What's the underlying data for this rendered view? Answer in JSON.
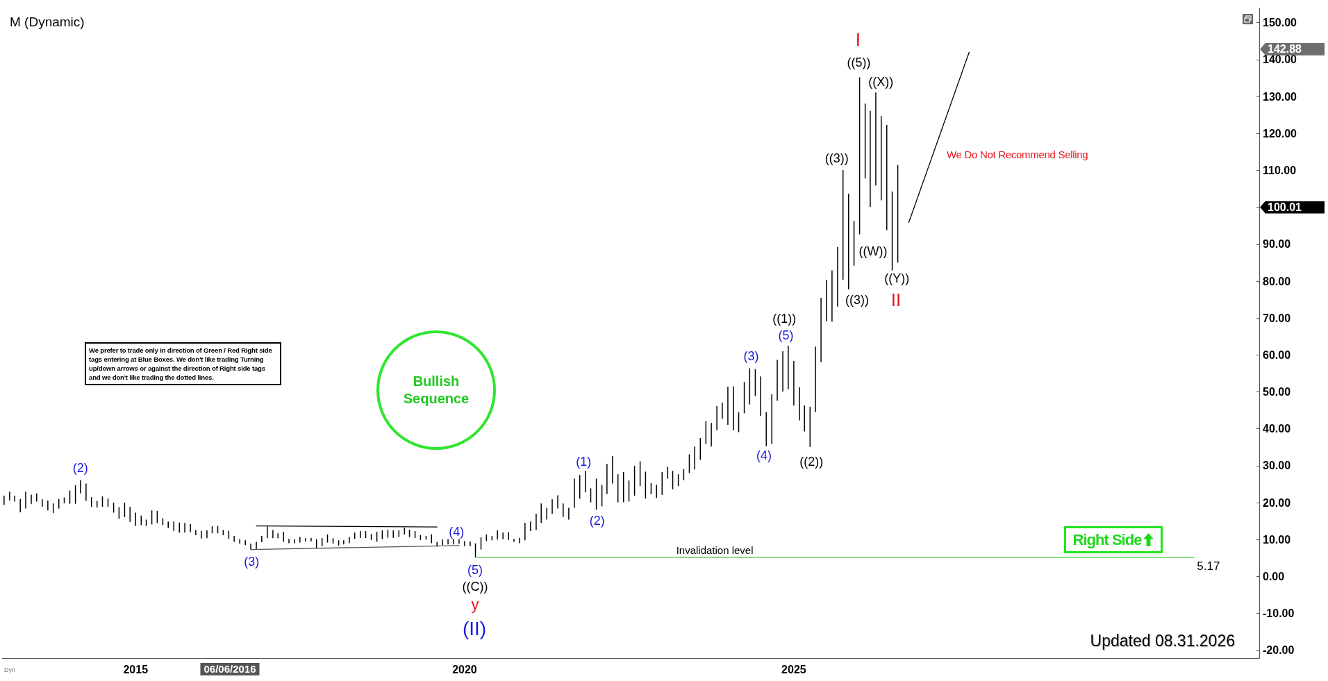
{
  "chart_data": {
    "type": "bar",
    "title": "M (Dynamic)",
    "xlim": [
      "2012-12-21",
      "2032-01-28"
    ],
    "xticks": [
      "2015",
      "2020",
      "2025"
    ],
    "ylim": [
      -22.1,
      153.9
    ],
    "yticks": [
      {
        "value": -20,
        "label": "-20.00"
      },
      {
        "value": -10,
        "label": "-10.00"
      },
      {
        "value": 0,
        "label": "0.00"
      },
      {
        "value": 10,
        "label": "10.00"
      },
      {
        "value": 20,
        "label": "20.00"
      },
      {
        "value": 30,
        "label": "30.00"
      },
      {
        "value": 40,
        "label": "40.00"
      },
      {
        "value": 50,
        "label": "50.00"
      },
      {
        "value": 60,
        "label": "60.00"
      },
      {
        "value": 70,
        "label": "70.00"
      },
      {
        "value": 80,
        "label": "80.00"
      },
      {
        "value": 90,
        "label": "90.00"
      },
      {
        "value": 100,
        "label": null
      },
      {
        "value": 110,
        "label": "110.00"
      },
      {
        "value": 120,
        "label": "120.00"
      },
      {
        "value": 130,
        "label": "130.00"
      },
      {
        "value": 140,
        "label": "140.00"
      },
      {
        "value": 150,
        "label": "150.00"
      }
    ],
    "marker": "none",
    "series": [
      {
        "color": "#000000",
        "x": [
          "2013-01",
          "2013-02",
          "2013-03",
          "2013-04",
          "2013-05",
          "2013-06",
          "2013-07",
          "2013-08",
          "2013-09",
          "2013-10",
          "2013-11",
          "2013-12",
          "2014-01",
          "2014-02",
          "2014-03",
          "2014-04",
          "2014-05",
          "2014-06",
          "2014-07",
          "2014-08",
          "2014-09",
          "2014-10",
          "2014-11",
          "2014-12",
          "2015-01",
          "2015-02",
          "2015-03",
          "2015-04",
          "2015-05",
          "2015-06",
          "2015-07",
          "2015-08",
          "2015-09",
          "2015-10",
          "2015-11",
          "2015-12",
          "2016-01",
          "2016-02",
          "2016-03",
          "2016-04",
          "2016-05",
          "2016-06",
          "2016-07",
          "2016-08",
          "2016-09",
          "2016-10",
          "2016-11",
          "2016-12",
          "2017-01",
          "2017-02",
          "2017-03",
          "2017-04",
          "2017-05",
          "2017-06",
          "2017-07",
          "2017-08",
          "2017-09",
          "2017-10",
          "2017-11",
          "2017-12",
          "2018-01",
          "2018-02",
          "2018-03",
          "2018-04",
          "2018-05",
          "2018-06",
          "2018-07",
          "2018-08",
          "2018-09",
          "2018-10",
          "2018-11",
          "2018-12",
          "2019-01",
          "2019-02",
          "2019-03",
          "2019-04",
          "2019-05",
          "2019-06",
          "2019-07",
          "2019-08",
          "2019-09",
          "2019-10",
          "2019-11",
          "2019-12",
          "2020-01",
          "2020-02",
          "2020-03",
          "2020-04",
          "2020-05",
          "2020-06",
          "2020-07",
          "2020-08",
          "2020-09",
          "2020-10",
          "2020-11",
          "2020-12",
          "2021-01",
          "2021-02",
          "2021-03",
          "2021-04",
          "2021-05",
          "2021-06",
          "2021-07",
          "2021-08",
          "2021-09",
          "2021-10",
          "2021-11",
          "2021-12",
          "2022-01",
          "2022-02",
          "2022-03",
          "2022-04",
          "2022-05",
          "2022-06",
          "2022-07",
          "2022-08",
          "2022-09",
          "2022-10",
          "2022-11",
          "2022-12",
          "2023-01",
          "2023-02",
          "2023-03",
          "2023-04",
          "2023-05",
          "2023-06",
          "2023-07",
          "2023-08",
          "2023-09",
          "2023-10",
          "2023-11",
          "2023-12",
          "2024-01",
          "2024-02",
          "2024-03",
          "2024-04",
          "2024-05",
          "2024-06",
          "2024-07",
          "2024-08",
          "2024-09",
          "2024-10",
          "2024-11",
          "2024-12",
          "2025-01",
          "2025-02",
          "2025-03",
          "2025-04",
          "2025-05",
          "2025-06",
          "2025-07",
          "2025-08",
          "2025-09",
          "2025-10",
          "2025-11",
          "2025-12",
          "2026-01",
          "2026-02",
          "2026-03",
          "2026-04",
          "2026-05",
          "2026-06",
          "2026-07",
          "2026-08"
        ],
        "base": [
          19.4,
          20.6,
          20.3,
          17.4,
          18.4,
          19.7,
          20.3,
          18.9,
          17.9,
          17.2,
          18.4,
          19.8,
          19.7,
          19.7,
          22.5,
          20.5,
          18.9,
          18.7,
          18.9,
          18.9,
          17.3,
          15.6,
          16.1,
          14.8,
          13.7,
          13.9,
          13.7,
          14.1,
          14.5,
          13.9,
          13.1,
          12.3,
          11.9,
          11.9,
          12.0,
          11.2,
          10.3,
          10.4,
          11.7,
          11.7,
          11.2,
          10.2,
          9.4,
          8.9,
          8.5,
          7.4,
          7.4,
          9.3,
          10.4,
          10.4,
          10.4,
          9.4,
          9.0,
          9.0,
          9.2,
          9.5,
          9.5,
          7.6,
          8.2,
          9.2,
          8.9,
          8.4,
          8.7,
          9.0,
          10.2,
          10.4,
          10.4,
          9.9,
          9.4,
          10.1,
          10.5,
          10.5,
          10.7,
          11.4,
          10.7,
          10.4,
          9.9,
          10.0,
          9.0,
          8.1,
          8.5,
          8.7,
          8.7,
          8.9,
          8.2,
          8.2,
          5.17,
          7.3,
          9.6,
          9.8,
          10.0,
          10.1,
          9.9,
          9.4,
          9.0,
          9.8,
          12.3,
          12.6,
          14.5,
          15.4,
          17.0,
          18.4,
          16.1,
          15.4,
          18.6,
          21.1,
          22.8,
          20.1,
          18.1,
          19.0,
          22.3,
          25.2,
          20.1,
          20.1,
          20.3,
          21.9,
          24.5,
          21.1,
          22.3,
          21.3,
          22.1,
          26.5,
          23.6,
          24.5,
          26.1,
          28.0,
          29.0,
          31.6,
          35.9,
          35.2,
          39.6,
          42.7,
          41.1,
          39.6,
          39.1,
          44.2,
          46.6,
          48.9,
          43.5,
          35.3,
          35.9,
          47.6,
          50.1,
          50.7,
          46.3,
          42.3,
          39.3,
          35.1,
          44.5,
          58.1,
          69.1,
          69.0,
          73.1,
          80.4,
          77.8,
          84.2,
          92.7,
          107.8,
          100.1,
          105.9,
          101.9,
          93.8,
          82.9,
          85.0
        ],
        "values": [
          2.5,
          2.4,
          1.6,
          3.6,
          4.6,
          2.5,
          2.2,
          2.0,
          2.7,
          2.6,
          2.6,
          1.6,
          3.6,
          5.0,
          3.6,
          4.7,
          2.6,
          1.8,
          2.8,
          2.2,
          2.7,
          3.2,
          3.9,
          4.1,
          3.6,
          2.6,
          1.7,
          3.8,
          3.3,
          1.9,
          1.8,
          2.6,
          2.7,
          2.6,
          2.2,
          1.4,
          2.0,
          2.1,
          1.9,
          2.0,
          1.4,
          2.2,
          1.6,
          1.2,
          1.3,
          1.5,
          2.0,
          1.7,
          3.2,
          2.2,
          1.3,
          2.7,
          1.2,
          1.1,
          1.5,
          0.9,
          1.0,
          2.5,
          2.2,
          2.2,
          1.5,
          1.4,
          1.1,
          1.7,
          1.7,
          1.9,
          1.9,
          1.6,
          2.7,
          2.4,
          2.2,
          2.0,
          1.8,
          1.8,
          2.0,
          1.9,
          1.3,
          1.0,
          2.4,
          1.3,
          1.5,
          1.4,
          1.5,
          1.2,
          1.4,
          1.3,
          3.8,
          3.3,
          1.8,
          1.2,
          2.5,
          1.8,
          2.1,
          0.8,
          1.5,
          4.7,
          2.6,
          4.4,
          5.3,
          3.2,
          3.9,
          3.6,
          3.7,
          3.2,
          7.9,
          6.4,
          5.8,
          3.8,
          8.4,
          5.8,
          8.2,
          7.4,
          7.6,
          8.2,
          5.7,
          8.1,
          6.7,
          7.3,
          3.0,
          3.5,
          6.2,
          3.2,
          5.0,
          3.2,
          3.0,
          5.1,
          6.2,
          5.9,
          6.2,
          6.4,
          6.6,
          4.4,
          10.3,
          11.9,
          5.4,
          8.5,
          9.8,
          7.3,
          10.7,
          9.2,
          13.5,
          11.1,
          10.9,
          11.8,
          12.1,
          9.0,
          7.0,
          10.9,
          17.8,
          17.4,
          11.3,
          13.9,
          16.1,
          29.7,
          25.9,
          12.1,
          42.5,
          20.3,
          26.0,
          25.2,
          22.8,
          28.5,
          21.4,
          26.5
        ]
      },
      {
        "type": "line",
        "color": "#000000",
        "x": [
          "2016-11",
          "2019-08"
        ],
        "values": [
          13.7,
          13.4
        ]
      },
      {
        "type": "line",
        "color": "#555555",
        "x": [
          "2016-10",
          "2019-12"
        ],
        "values": [
          7.3,
          8.4
        ]
      },
      {
        "type": "line",
        "name": "Invalidation level",
        "color": "#3ec43e",
        "x": [
          "2020-03",
          "2031-02"
        ],
        "values": [
          5.17,
          5.17
        ],
        "value_labels": [
          null,
          "5.17"
        ]
      },
      {
        "type": "line",
        "color": "#000000",
        "x": [
          "2026-10",
          "2027-09"
        ],
        "values": [
          95.9,
          142
        ]
      }
    ],
    "annotations": [
      "We Do Not Recommend Selling",
      "We prefer to trade only in direction of Green / Red Right side tags entering at Blue Boxes. We don't like trading Turning up/down arrows or against the direction of Right side tags and we don't like trading the dotted lines.",
      "Bullish Sequence",
      "Right Side",
      "Updated 08.31.2026",
      "Dyn",
      "(2)",
      "(3)",
      "(4)",
      "(5)",
      "((C))",
      "y",
      "(II)",
      "(1)",
      "(2)",
      "(3)",
      "(4)",
      "((1))",
      "(5)",
      "((2))",
      "((3))",
      "((3))",
      "((5))",
      "I",
      "((X))",
      "((W))",
      "((Y))",
      "II",
      "142.88",
      "100.01",
      "06/06/2016"
    ]
  }
}
